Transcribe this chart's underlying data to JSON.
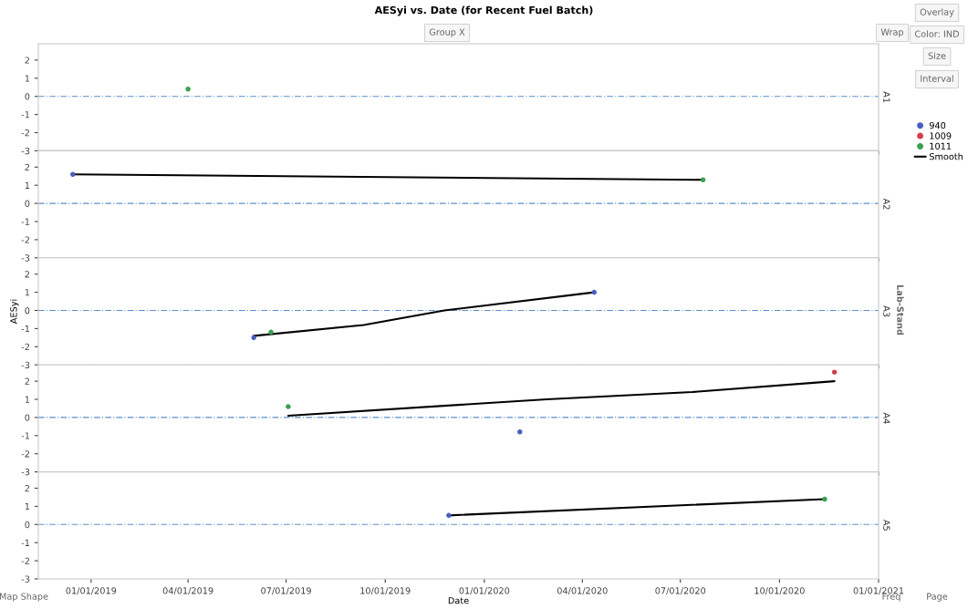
{
  "chart_data": [
    {
      "type": "scatter",
      "title": "AESyi vs. Date (for Recent Fuel Batch)",
      "annotations": [
        "A1",
        "Group X",
        "Wrap",
        "Overlay",
        "Color: IND",
        "Size",
        "Interval",
        "Lab-Stand",
        "Map Shape",
        "Freq",
        "Page"
      ],
      "series": [
        {
          "type": "scatter",
          "marker": "circle",
          "color": "#3aa050",
          "x": [
            "2019-04-01"
          ],
          "values": [
            0.4
          ]
        }
      ],
      "xlim": [
        "2018-11-13",
        "2021-01-01"
      ],
      "xticks": [
        {
          "value": "2019-01-01",
          "label": null
        },
        {
          "value": "2019-04-01",
          "label": null
        },
        {
          "value": "2019-07-01",
          "label": null
        },
        {
          "value": "2019-10-01",
          "label": null
        },
        {
          "value": "2020-01-01",
          "label": null
        },
        {
          "value": "2020-04-01",
          "label": null
        },
        {
          "value": "2020-07-01",
          "label": null
        },
        {
          "value": "2020-10-01",
          "label": null
        },
        {
          "value": "2021-01-01",
          "label": null
        }
      ],
      "ylim": [
        -3,
        2.9
      ],
      "yticks": [
        -3,
        -2,
        -1,
        0,
        1,
        2
      ],
      "ref_lines": [
        {
          "axis": "y",
          "value": 0,
          "color": "#5b8fc7",
          "line_style": "dashed"
        }
      ],
      "tick_labels": "y"
    },
    {
      "type": "scatter",
      "annotations": [
        "A2"
      ],
      "series": [
        {
          "type": "scatter",
          "marker": "circle",
          "color": "#4a5fc1",
          "x": [
            "2018-12-15"
          ],
          "values": [
            1.6
          ]
        },
        {
          "type": "scatter",
          "marker": "circle",
          "color": "#3aa050",
          "x": [
            "2020-07-22"
          ],
          "values": [
            1.3
          ]
        },
        {
          "type": "line",
          "color": "#000000",
          "x": [
            "2018-12-15",
            "2020-07-22"
          ],
          "values": [
            1.6,
            1.3
          ]
        }
      ],
      "xlim": [
        "2018-11-13",
        "2021-01-01"
      ],
      "xticks": [
        {
          "value": "2019-01-01",
          "label": null
        },
        {
          "value": "2019-04-01",
          "label": null
        },
        {
          "value": "2019-07-01",
          "label": null
        },
        {
          "value": "2019-10-01",
          "label": null
        },
        {
          "value": "2020-01-01",
          "label": null
        },
        {
          "value": "2020-04-01",
          "label": null
        },
        {
          "value": "2020-07-01",
          "label": null
        },
        {
          "value": "2020-10-01",
          "label": null
        },
        {
          "value": "2021-01-01",
          "label": null
        }
      ],
      "ylim": [
        -3,
        2.9
      ],
      "yticks": [
        -3,
        -2,
        -1,
        0,
        1,
        2
      ],
      "ref_lines": [
        {
          "axis": "y",
          "value": 0,
          "color": "#5b8fc7",
          "line_style": "dashed"
        }
      ],
      "tick_labels": "y"
    },
    {
      "type": "scatter",
      "annotations": [
        "A3"
      ],
      "ylabel": "AESyi",
      "series": [
        {
          "type": "scatter",
          "marker": "circle",
          "color": "#4a5fc1",
          "x": [
            "2019-06-01",
            "2020-04-12"
          ],
          "values": [
            -1.5,
            1.0
          ]
        },
        {
          "type": "scatter",
          "marker": "circle",
          "color": "#3aa050",
          "x": [
            "2019-06-17"
          ],
          "values": [
            -1.2
          ]
        },
        {
          "type": "line",
          "color": "#000000",
          "x": [
            "2019-06-01",
            "2019-09-11",
            "2019-11-25",
            "2020-04-12"
          ],
          "values": [
            -1.4,
            -0.8,
            0.0,
            1.0
          ]
        }
      ],
      "xlim": [
        "2018-11-13",
        "2021-01-01"
      ],
      "xticks": [
        {
          "value": "2019-01-01",
          "label": null
        },
        {
          "value": "2019-04-01",
          "label": null
        },
        {
          "value": "2019-07-01",
          "label": null
        },
        {
          "value": "2019-10-01",
          "label": null
        },
        {
          "value": "2020-01-01",
          "label": null
        },
        {
          "value": "2020-04-01",
          "label": null
        },
        {
          "value": "2020-07-01",
          "label": null
        },
        {
          "value": "2020-10-01",
          "label": null
        },
        {
          "value": "2021-01-01",
          "label": null
        }
      ],
      "ylim": [
        -3,
        2.9
      ],
      "yticks": [
        -3,
        -2,
        -1,
        0,
        1,
        2
      ],
      "ref_lines": [
        {
          "axis": "y",
          "value": 0,
          "color": "#5b8fc7",
          "line_style": "dashed"
        }
      ],
      "tick_labels": "y"
    },
    {
      "type": "scatter",
      "annotations": [
        "A4"
      ],
      "legend": "right",
      "series": [
        {
          "name": "940",
          "type": "scatter",
          "marker": "circle",
          "color": "#4a5fc1",
          "x": [
            "2020-02-03"
          ],
          "values": [
            -0.8
          ]
        },
        {
          "name": "1009",
          "type": "scatter",
          "marker": "circle",
          "color": "#d0404a",
          "x": [
            "2020-11-21"
          ],
          "values": [
            2.5
          ]
        },
        {
          "name": "1011",
          "type": "scatter",
          "marker": "circle",
          "color": "#3aa050",
          "x": [
            "2019-07-03"
          ],
          "values": [
            0.6
          ]
        },
        {
          "name": "Smooth",
          "type": "line",
          "color": "#000000",
          "x": [
            "2019-07-03",
            "2020-02-28",
            "2020-07-12",
            "2020-11-21"
          ],
          "values": [
            0.1,
            1.0,
            1.4,
            2.0
          ]
        }
      ],
      "xlim": [
        "2018-11-13",
        "2021-01-01"
      ],
      "xticks": [
        {
          "value": "2019-01-01",
          "label": null
        },
        {
          "value": "2019-04-01",
          "label": null
        },
        {
          "value": "2019-07-01",
          "label": null
        },
        {
          "value": "2019-10-01",
          "label": null
        },
        {
          "value": "2020-01-01",
          "label": null
        },
        {
          "value": "2020-04-01",
          "label": null
        },
        {
          "value": "2020-07-01",
          "label": null
        },
        {
          "value": "2020-10-01",
          "label": null
        },
        {
          "value": "2021-01-01",
          "label": null
        }
      ],
      "ylim": [
        -3,
        2.9
      ],
      "yticks": [
        -3,
        -2,
        -1,
        0,
        1,
        2
      ],
      "ref_lines": [
        {
          "axis": "y",
          "value": 0,
          "color": "#5b8fc7",
          "line_style": "dashed"
        }
      ],
      "tick_labels": "y"
    },
    {
      "type": "scatter",
      "annotations": [
        "A5"
      ],
      "xlabel": "Date",
      "series": [
        {
          "type": "scatter",
          "marker": "circle",
          "color": "#4a5fc1",
          "x": [
            "2019-11-29"
          ],
          "values": [
            0.5
          ]
        },
        {
          "type": "scatter",
          "marker": "circle",
          "color": "#3aa050",
          "x": [
            "2020-11-12"
          ],
          "values": [
            1.4
          ]
        },
        {
          "type": "line",
          "color": "#000000",
          "x": [
            "2019-11-29",
            "2020-11-12"
          ],
          "values": [
            0.5,
            1.4
          ]
        }
      ],
      "xlim": [
        "2018-11-13",
        "2021-01-01"
      ],
      "xticks": [
        {
          "value": "2019-01-01",
          "label": "01/01/2019"
        },
        {
          "value": "2019-04-01",
          "label": "04/01/2019"
        },
        {
          "value": "2019-07-01",
          "label": "07/01/2019"
        },
        {
          "value": "2019-10-01",
          "label": "10/01/2019"
        },
        {
          "value": "2020-01-01",
          "label": "01/01/2020"
        },
        {
          "value": "2020-04-01",
          "label": "04/01/2020"
        },
        {
          "value": "2020-07-01",
          "label": "07/01/2020"
        },
        {
          "value": "2020-10-01",
          "label": "10/01/2020"
        },
        {
          "value": "2021-01-01",
          "label": "01/01/2021"
        }
      ],
      "ylim": [
        -3,
        2.9
      ],
      "yticks": [
        -3,
        -2,
        -1,
        0,
        1,
        2
      ],
      "ref_lines": [
        {
          "axis": "y",
          "value": 0,
          "color": "#5b8fc7",
          "line_style": "dashed"
        }
      ]
    }
  ]
}
